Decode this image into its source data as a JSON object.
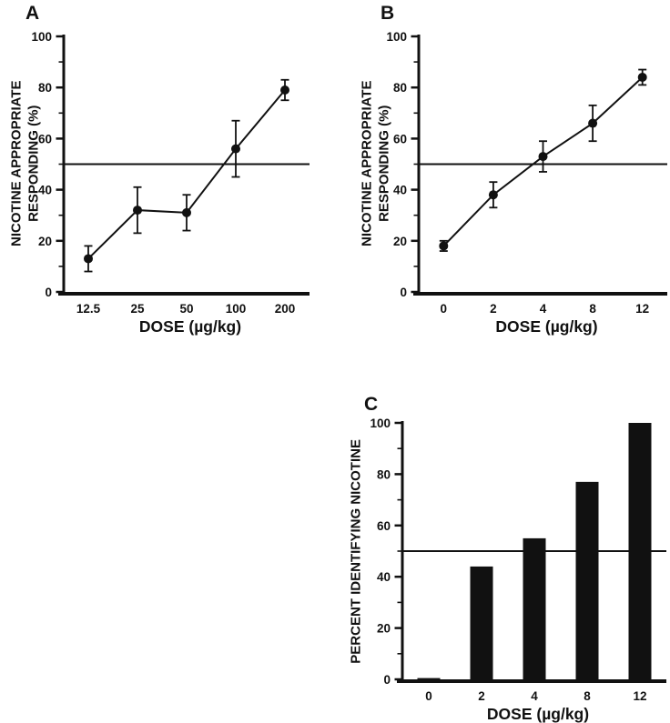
{
  "page": {
    "background": "#ffffff"
  },
  "colors": {
    "ink": "#111111"
  },
  "chart_data": [
    {
      "type": "line",
      "panel_label": "A",
      "title": "",
      "xlabel": "DOSE (µg/kg)",
      "ylabel": "NICOTINE APPROPRIATE\nRESPONDING (%)",
      "categories": [
        "12.5",
        "25",
        "50",
        "100",
        "200"
      ],
      "values": [
        13,
        32,
        31,
        56,
        79
      ],
      "errors": [
        5,
        9,
        7,
        11,
        4
      ],
      "reference_line_y": 50,
      "ylim": [
        0,
        100
      ],
      "yticks": [
        0,
        20,
        40,
        60,
        80,
        100
      ],
      "ytick_step": 20,
      "ytick_minor_step": 10,
      "grid": "off",
      "legend": "none",
      "marker": "filled-circle",
      "line_color": "#111111"
    },
    {
      "type": "line",
      "panel_label": "B",
      "title": "",
      "xlabel": "DOSE (µg/kg)",
      "ylabel": "NICOTINE APPROPRIATE\nRESPONDING (%)",
      "categories": [
        "0",
        "2",
        "4",
        "8",
        "12"
      ],
      "values": [
        18,
        38,
        53,
        66,
        84
      ],
      "errors": [
        2,
        5,
        6,
        7,
        3
      ],
      "reference_line_y": 50,
      "ylim": [
        0,
        100
      ],
      "yticks": [
        0,
        20,
        40,
        60,
        80,
        100
      ],
      "ytick_step": 20,
      "ytick_minor_step": 10,
      "grid": "off",
      "legend": "none",
      "marker": "filled-circle",
      "line_color": "#111111"
    },
    {
      "type": "bar",
      "panel_label": "C",
      "title": "",
      "xlabel": "DOSE (µg/kg)",
      "ylabel": "PERCENT IDENTIFYING NICOTINE",
      "categories": [
        "0",
        "2",
        "4",
        "8",
        "12"
      ],
      "values": [
        0.5,
        44,
        55,
        77,
        100
      ],
      "reference_line_y": 50,
      "ylim": [
        0,
        100
      ],
      "yticks": [
        0,
        20,
        40,
        60,
        80,
        100
      ],
      "ytick_step": 20,
      "ytick_minor_step": 10,
      "grid": "off",
      "legend": "none",
      "bar_color": "#111111"
    }
  ]
}
